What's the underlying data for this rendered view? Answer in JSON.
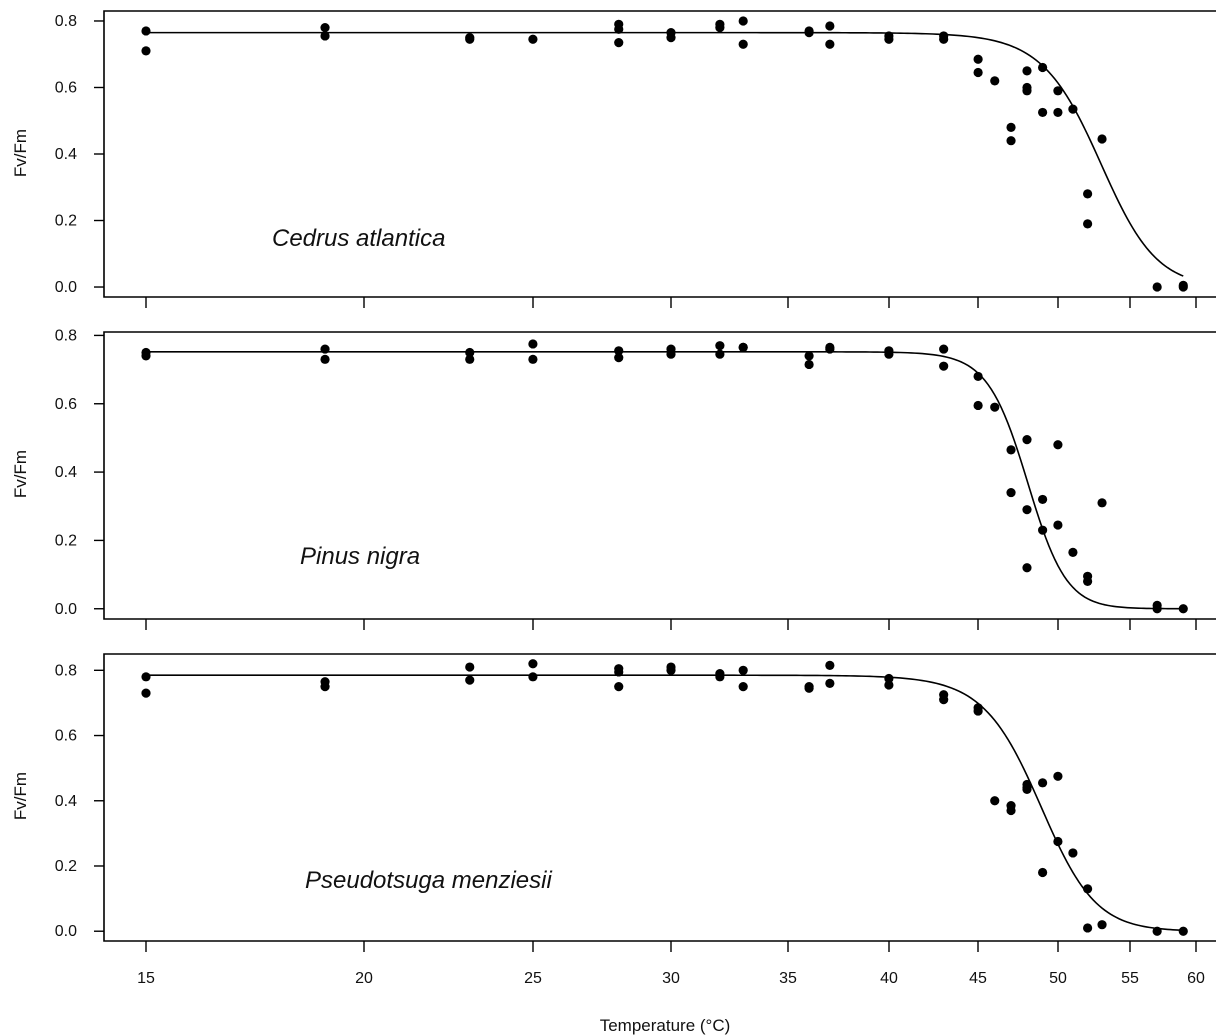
{
  "colors": {
    "points": "#000000",
    "curve": "#000000",
    "frame": "#000000"
  },
  "chart_data": [
    {
      "type": "scatter",
      "panel": "top",
      "annotation": "Cedrus atlantica",
      "xlabel": "",
      "ylabel": "Fv/Fm",
      "x_scale": "log",
      "xlim": [
        14,
        60
      ],
      "ylim": [
        -0.03,
        0.83
      ],
      "xticks": [
        15,
        20,
        25,
        30,
        35,
        40,
        45,
        50,
        55,
        60
      ],
      "yticks": [
        0.0,
        0.2,
        0.4,
        0.6,
        0.8
      ],
      "ytick_labels": [
        "0.0",
        "0.2",
        "0.4",
        "0.6",
        "0.8"
      ],
      "fit": {
        "type": "sigmoid",
        "max": 0.765,
        "t50": 52.8,
        "slope": 0.5,
        "xrange": [
          15,
          59
        ]
      },
      "points": [
        [
          15,
          0.77
        ],
        [
          15,
          0.71
        ],
        [
          19,
          0.78
        ],
        [
          19,
          0.755
        ],
        [
          23,
          0.75
        ],
        [
          23,
          0.745
        ],
        [
          25,
          0.745
        ],
        [
          28,
          0.79
        ],
        [
          28,
          0.775
        ],
        [
          28,
          0.735
        ],
        [
          30,
          0.765
        ],
        [
          30,
          0.75
        ],
        [
          32,
          0.79
        ],
        [
          32,
          0.78
        ],
        [
          33,
          0.8
        ],
        [
          33,
          0.73
        ],
        [
          36,
          0.77
        ],
        [
          36,
          0.765
        ],
        [
          37,
          0.785
        ],
        [
          37,
          0.73
        ],
        [
          40,
          0.755
        ],
        [
          40,
          0.745
        ],
        [
          43,
          0.755
        ],
        [
          43,
          0.745
        ],
        [
          45,
          0.685
        ],
        [
          45,
          0.645
        ],
        [
          46,
          0.62
        ],
        [
          47,
          0.48
        ],
        [
          47,
          0.44
        ],
        [
          48,
          0.65
        ],
        [
          48,
          0.6
        ],
        [
          48,
          0.59
        ],
        [
          49,
          0.66
        ],
        [
          49,
          0.525
        ],
        [
          50,
          0.59
        ],
        [
          50,
          0.525
        ],
        [
          51,
          0.535
        ],
        [
          52,
          0.28
        ],
        [
          52,
          0.19
        ],
        [
          53,
          0.445
        ],
        [
          57,
          0.0
        ],
        [
          59,
          0.005
        ],
        [
          59,
          0.0
        ]
      ]
    },
    {
      "type": "scatter",
      "panel": "middle",
      "annotation": "Pinus nigra",
      "xlabel": "",
      "ylabel": "Fv/Fm",
      "x_scale": "log",
      "xlim": [
        14,
        60
      ],
      "ylim": [
        -0.03,
        0.81
      ],
      "xticks": [
        15,
        20,
        25,
        30,
        35,
        40,
        45,
        50,
        55,
        60
      ],
      "yticks": [
        0.0,
        0.2,
        0.4,
        0.6,
        0.8
      ],
      "ytick_labels": [
        "0.0",
        "0.2",
        "0.4",
        "0.6",
        "0.8"
      ],
      "fit": {
        "type": "sigmoid",
        "max": 0.752,
        "t50": 48.0,
        "slope": 0.8,
        "xrange": [
          15,
          59
        ]
      },
      "points": [
        [
          15,
          0.75
        ],
        [
          15,
          0.74
        ],
        [
          19,
          0.76
        ],
        [
          19,
          0.73
        ],
        [
          23,
          0.75
        ],
        [
          23,
          0.73
        ],
        [
          25,
          0.775
        ],
        [
          25,
          0.73
        ],
        [
          28,
          0.755
        ],
        [
          28,
          0.735
        ],
        [
          30,
          0.76
        ],
        [
          30,
          0.745
        ],
        [
          32,
          0.77
        ],
        [
          32,
          0.745
        ],
        [
          33,
          0.765
        ],
        [
          33,
          0.765
        ],
        [
          36,
          0.74
        ],
        [
          36,
          0.715
        ],
        [
          37,
          0.765
        ],
        [
          37,
          0.76
        ],
        [
          40,
          0.755
        ],
        [
          40,
          0.745
        ],
        [
          43,
          0.76
        ],
        [
          43,
          0.71
        ],
        [
          45,
          0.68
        ],
        [
          45,
          0.595
        ],
        [
          46,
          0.59
        ],
        [
          47,
          0.465
        ],
        [
          47,
          0.34
        ],
        [
          48,
          0.495
        ],
        [
          48,
          0.29
        ],
        [
          48,
          0.12
        ],
        [
          49,
          0.32
        ],
        [
          49,
          0.23
        ],
        [
          50,
          0.48
        ],
        [
          50,
          0.245
        ],
        [
          51,
          0.165
        ],
        [
          52,
          0.095
        ],
        [
          52,
          0.08
        ],
        [
          53,
          0.31
        ],
        [
          57,
          0.01
        ],
        [
          57,
          0.0
        ],
        [
          59,
          0.0
        ]
      ]
    },
    {
      "type": "scatter",
      "panel": "bottom",
      "annotation": "Pseudotsuga menziesii",
      "xlabel": "Temperature (°C)",
      "ylabel": "Fv/Fm",
      "x_scale": "log",
      "xlim": [
        14,
        60
      ],
      "ylim": [
        -0.03,
        0.85
      ],
      "xticks": [
        15,
        20,
        25,
        30,
        35,
        40,
        45,
        50,
        55,
        60
      ],
      "xtick_labels": [
        "15",
        "20",
        "25",
        "30",
        "35",
        "40",
        "45",
        "50",
        "55",
        "60"
      ],
      "yticks": [
        0.0,
        0.2,
        0.4,
        0.6,
        0.8
      ],
      "ytick_labels": [
        "0.0",
        "0.2",
        "0.4",
        "0.6",
        "0.8"
      ],
      "fit": {
        "type": "sigmoid",
        "max": 0.785,
        "t50": 48.8,
        "slope": 0.55,
        "xrange": [
          15,
          59
        ]
      },
      "points": [
        [
          15,
          0.78
        ],
        [
          15,
          0.73
        ],
        [
          19,
          0.765
        ],
        [
          19,
          0.75
        ],
        [
          23,
          0.81
        ],
        [
          23,
          0.77
        ],
        [
          25,
          0.82
        ],
        [
          25,
          0.78
        ],
        [
          28,
          0.805
        ],
        [
          28,
          0.795
        ],
        [
          28,
          0.75
        ],
        [
          30,
          0.81
        ],
        [
          30,
          0.8
        ],
        [
          32,
          0.79
        ],
        [
          32,
          0.78
        ],
        [
          33,
          0.8
        ],
        [
          33,
          0.75
        ],
        [
          36,
          0.75
        ],
        [
          36,
          0.745
        ],
        [
          37,
          0.815
        ],
        [
          37,
          0.76
        ],
        [
          40,
          0.775
        ],
        [
          40,
          0.755
        ],
        [
          43,
          0.725
        ],
        [
          43,
          0.71
        ],
        [
          45,
          0.685
        ],
        [
          45,
          0.675
        ],
        [
          46,
          0.4
        ],
        [
          47,
          0.385
        ],
        [
          47,
          0.37
        ],
        [
          48,
          0.45
        ],
        [
          48,
          0.44
        ],
        [
          48,
          0.435
        ],
        [
          49,
          0.455
        ],
        [
          49,
          0.18
        ],
        [
          50,
          0.475
        ],
        [
          50,
          0.275
        ],
        [
          51,
          0.24
        ],
        [
          52,
          0.13
        ],
        [
          52,
          0.01
        ],
        [
          53,
          0.02
        ],
        [
          57,
          0.0
        ],
        [
          59,
          0.0
        ]
      ]
    }
  ]
}
